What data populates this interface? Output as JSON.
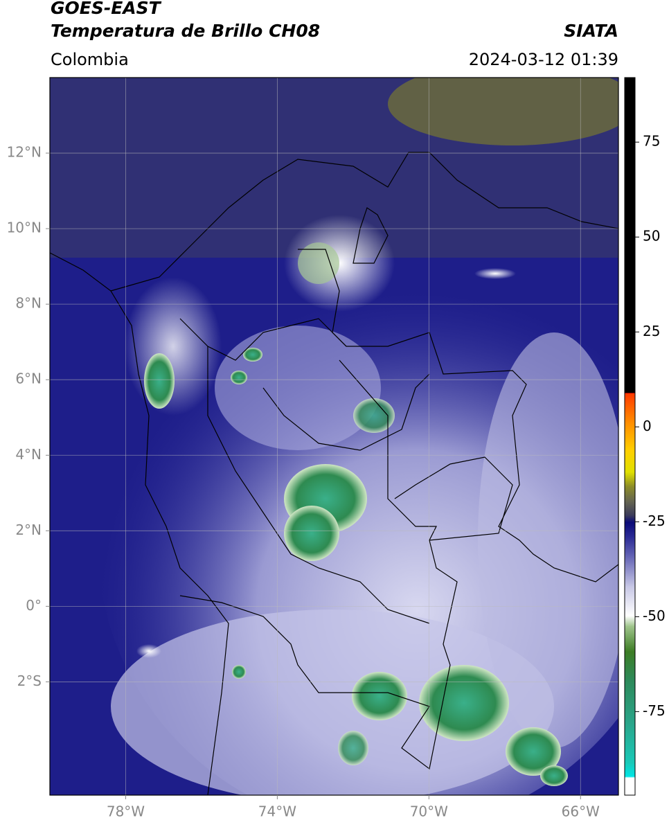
{
  "header": {
    "title": "GOES-EAST",
    "subtitle": "Temperatura de Brillo CH08",
    "region": "Colombia",
    "source": "SIATA",
    "datetime": "2024-03-12 01:39"
  },
  "map": {
    "xlim": [
      -80,
      -65
    ],
    "ylim": [
      -5,
      14
    ],
    "xticks": [
      {
        "value": -78,
        "label": "78°W"
      },
      {
        "value": -74,
        "label": "74°W"
      },
      {
        "value": -70,
        "label": "70°W"
      },
      {
        "value": -66,
        "label": "66°W"
      }
    ],
    "yticks": [
      {
        "value": 12,
        "label": "12°N"
      },
      {
        "value": 10,
        "label": "10°N"
      },
      {
        "value": 8,
        "label": "8°N"
      },
      {
        "value": 6,
        "label": "6°N"
      },
      {
        "value": 4,
        "label": "4°N"
      },
      {
        "value": 2,
        "label": "2°N"
      },
      {
        "value": 0,
        "label": "0°"
      },
      {
        "value": -2,
        "label": "2°S"
      }
    ]
  },
  "colorbar": {
    "lim": [
      -97,
      92
    ],
    "ticks": [
      75,
      50,
      25,
      0,
      -25,
      -50,
      -75
    ]
  }
}
